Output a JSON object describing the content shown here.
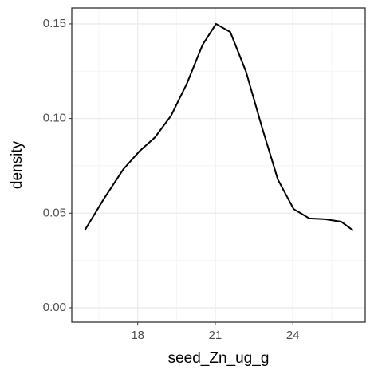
{
  "chart_data": {
    "type": "line",
    "x_label": "seed_Zn_ug_g",
    "y_label": "density",
    "x": [
      15.95,
      16.68,
      17.45,
      18.06,
      18.67,
      19.29,
      19.9,
      20.51,
      21.03,
      21.58,
      22.19,
      22.81,
      23.42,
      24.03,
      24.64,
      25.25,
      25.87,
      26.33
    ],
    "series": [
      {
        "color": "#000000",
        "values": [
          0.0409,
          0.0573,
          0.0733,
          0.0826,
          0.0901,
          0.1015,
          0.1184,
          0.139,
          0.15,
          0.1457,
          0.1247,
          0.0952,
          0.0678,
          0.0522,
          0.0472,
          0.0468,
          0.0455,
          0.0409
        ]
      }
    ],
    "xlim": [
      15.45,
      26.8
    ],
    "ylim": [
      -0.0076,
      0.1584
    ],
    "xticks": [
      18,
      21,
      24
    ],
    "yticks": [
      {
        "value": 0,
        "label": "0.00"
      },
      {
        "value": 0.05,
        "label": "0.05"
      },
      {
        "value": 0.1,
        "label": "0.10"
      },
      {
        "value": 0.15,
        "label": "0.15"
      }
    ],
    "x_minor_grid": [
      16.5,
      19.5,
      22.5,
      25.5
    ],
    "y_minor_grid": [
      0.025,
      0.075,
      0.125
    ],
    "grid": true
  }
}
